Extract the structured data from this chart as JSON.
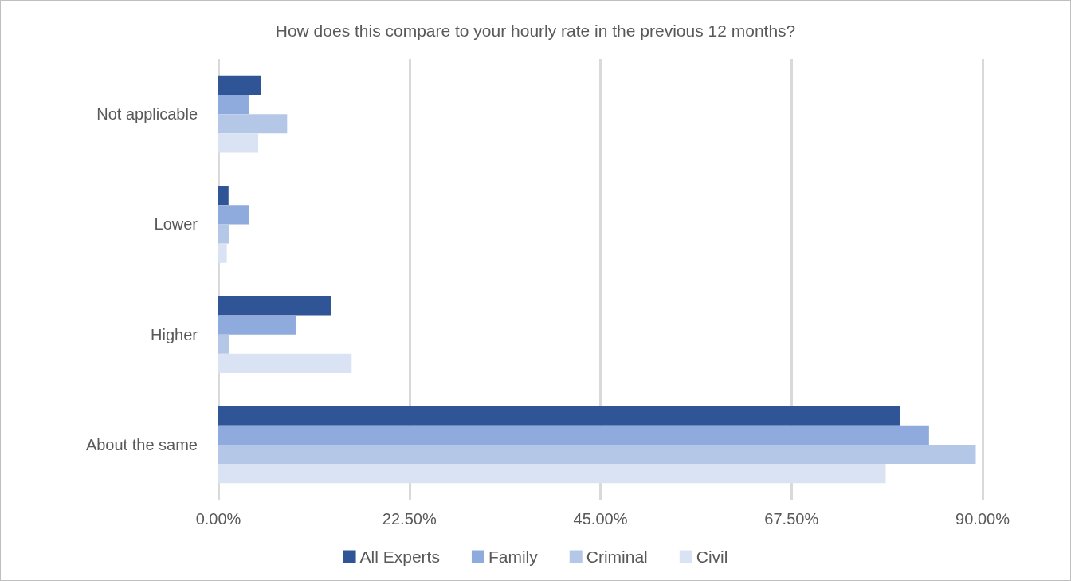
{
  "chart_data": {
    "type": "bar",
    "orientation": "horizontal",
    "title": "How does this compare to your hourly rate in the previous 12 months?",
    "categories": [
      "Not applicable",
      "Lower",
      "Higher",
      "About the same"
    ],
    "series": [
      {
        "name": "All Experts",
        "color": "#2f5597",
        "values": [
          5.0,
          1.2,
          13.3,
          80.3
        ]
      },
      {
        "name": "Family",
        "color": "#8faadc",
        "values": [
          3.6,
          3.6,
          9.1,
          83.7
        ]
      },
      {
        "name": "Criminal",
        "color": "#b4c7e7",
        "values": [
          8.1,
          1.3,
          1.3,
          89.2
        ]
      },
      {
        "name": "Civil",
        "color": "#dae3f3",
        "values": [
          4.7,
          1.0,
          15.7,
          78.6
        ]
      }
    ],
    "xlim": [
      0,
      90
    ],
    "xticks": [
      {
        "value": 0,
        "label": "0.00%"
      },
      {
        "value": 22.5,
        "label": "22.50%"
      },
      {
        "value": 45,
        "label": "45.00%"
      },
      {
        "value": 67.5,
        "label": "67.50%"
      },
      {
        "value": 90,
        "label": "90.00%"
      }
    ],
    "grid": "x",
    "legend": "bottom"
  }
}
